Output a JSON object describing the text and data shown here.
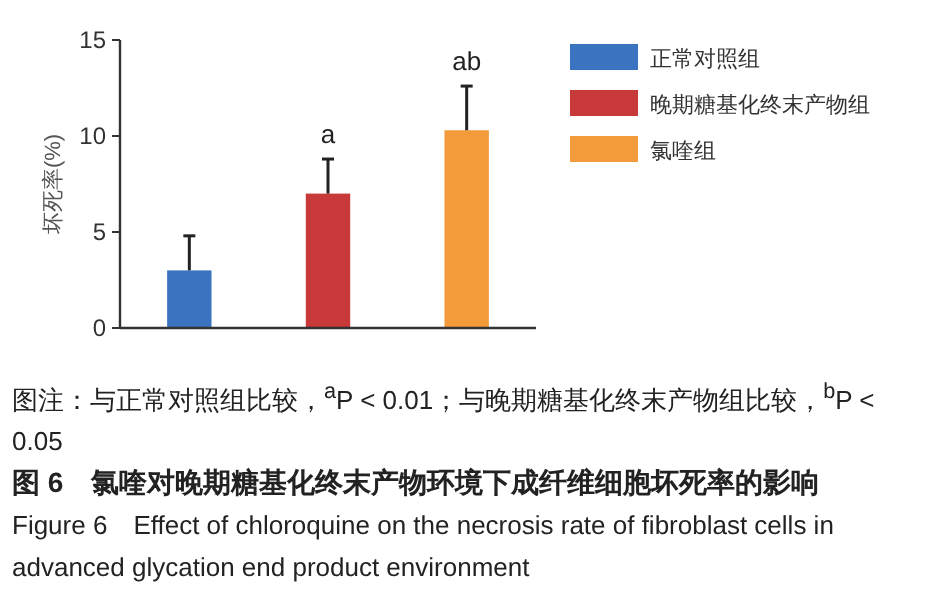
{
  "chart_data": {
    "type": "bar",
    "ylabel": "坏死率(%)",
    "categories": [
      null,
      null,
      null
    ],
    "series": [
      {
        "name": "正常对照组",
        "color": "#3a73c0",
        "values": [
          3.0,
          null,
          null
        ],
        "errors": [
          [
            3.0,
            4.8
          ],
          null,
          null
        ]
      },
      {
        "name": "晚期糖基化终末产物组",
        "color": "#c8393a",
        "values": [
          null,
          7.0,
          null
        ],
        "errors": [
          null,
          [
            7.0,
            8.8
          ],
          null
        ]
      },
      {
        "name": "氯喹组",
        "color": "#f39a3a",
        "values": [
          null,
          null,
          10.3
        ],
        "errors": [
          null,
          null,
          [
            10.3,
            12.6
          ]
        ]
      }
    ],
    "ylim": [
      0,
      15
    ],
    "yticks": [
      0,
      5,
      10,
      15
    ],
    "grid": false,
    "legend": "right",
    "annotations": [
      {
        "text": "a",
        "y": 8.8
      },
      {
        "text": "ab",
        "y": 12.6
      },
      "图注：与正常对照组比较，$^{a}$P < 0.01；与晚期糖基化终末产物组比较，$^{b}$P < 0.05"
    ],
    "title": "图 6　氯喹对晚期糖基化终末产物环境下成纤维细胞坏死率的影响",
    "subtitle": "Figure 6　Effect of chloroquine on the necrosis rate of fibroblast cells in advanced glycation end product environment"
  }
}
